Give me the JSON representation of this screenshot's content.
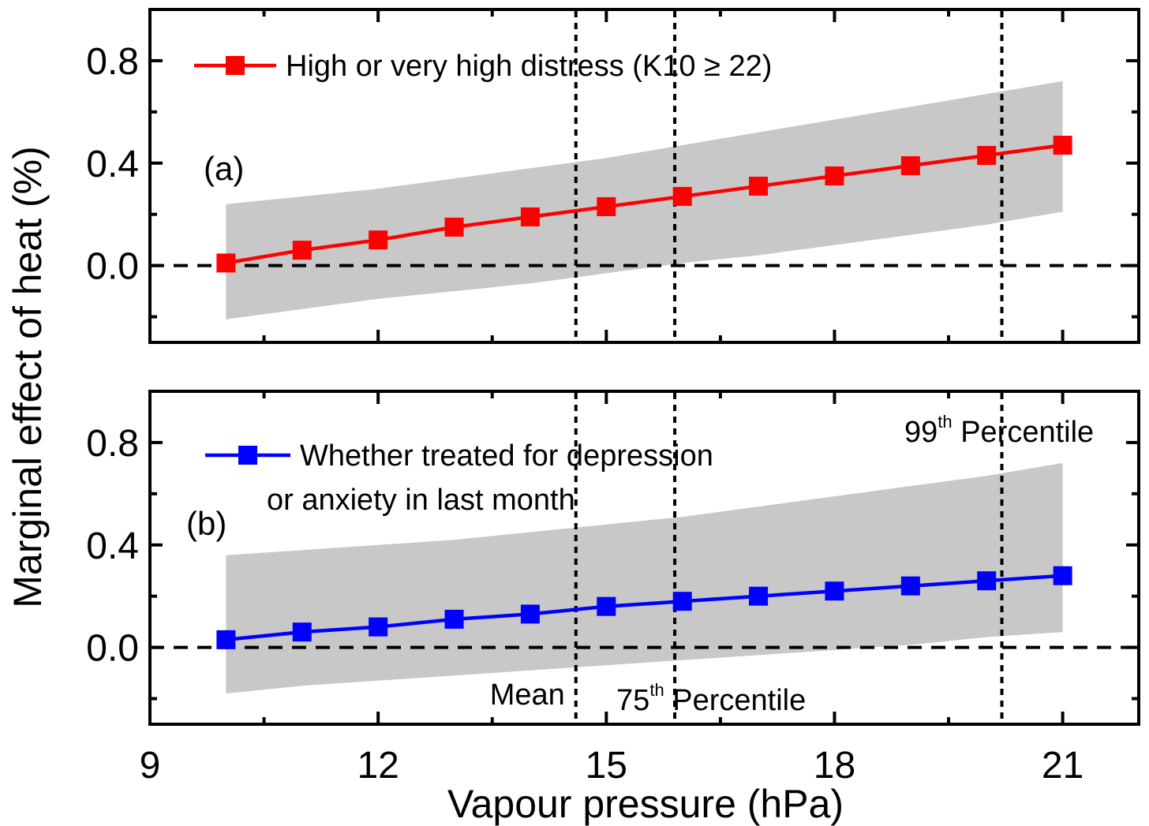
{
  "chart_data": {
    "type": "line",
    "xlabel": "Vapour pressure (hPa)",
    "ylabel": "Marginal effect of heat (%)",
    "xlim": [
      9,
      22
    ],
    "x_ticks": [
      "9",
      "12",
      "15",
      "18",
      "21"
    ],
    "x_tick_values": [
      9,
      12,
      15,
      18,
      21
    ],
    "vlines": [
      {
        "x": 14.6,
        "label": "Mean",
        "sup": "",
        "suffix": ""
      },
      {
        "x": 15.9,
        "label": "75",
        "sup": "th",
        "suffix": " Percentile"
      },
      {
        "x": 20.2,
        "label": "99",
        "sup": "th",
        "suffix": " Percentile"
      }
    ],
    "panels": [
      {
        "label": "(a)",
        "ylim": [
          -0.3,
          1.0
        ],
        "y_ticks": [
          "0.0",
          "0.4",
          "0.8"
        ],
        "y_tick_values": [
          0.0,
          0.4,
          0.8
        ],
        "series": [
          {
            "name": "High or very high distress (K10 ≥ 22)",
            "color": "#ff0000",
            "x": [
              10,
              11,
              12,
              13,
              14,
              15,
              16,
              17,
              18,
              19,
              20,
              21
            ],
            "values": [
              0.01,
              0.06,
              0.1,
              0.15,
              0.19,
              0.23,
              0.27,
              0.31,
              0.35,
              0.39,
              0.43,
              0.47
            ],
            "ci_lower": [
              -0.21,
              -0.17,
              -0.13,
              -0.1,
              -0.07,
              -0.03,
              0.01,
              0.04,
              0.08,
              0.12,
              0.16,
              0.21
            ],
            "ci_upper": [
              0.24,
              0.27,
              0.3,
              0.34,
              0.38,
              0.42,
              0.47,
              0.52,
              0.57,
              0.62,
              0.67,
              0.72
            ]
          }
        ]
      },
      {
        "label": "(b)",
        "ylim": [
          -0.3,
          1.0
        ],
        "y_ticks": [
          "0.0",
          "0.4",
          "0.8"
        ],
        "y_tick_values": [
          0.0,
          0.4,
          0.8
        ],
        "series": [
          {
            "name": "Whether treated for depression or anxiety in last month",
            "name_lines": [
              "Whether treated for depression",
              "or anxiety in last month"
            ],
            "color": "#0000ff",
            "x": [
              10,
              11,
              12,
              13,
              14,
              15,
              16,
              17,
              18,
              19,
              20,
              21
            ],
            "values": [
              0.03,
              0.06,
              0.08,
              0.11,
              0.13,
              0.16,
              0.18,
              0.2,
              0.22,
              0.24,
              0.26,
              0.28
            ],
            "ci_lower": [
              -0.18,
              -0.15,
              -0.13,
              -0.11,
              -0.09,
              -0.07,
              -0.05,
              -0.03,
              -0.01,
              0.01,
              0.04,
              0.06
            ],
            "ci_upper": [
              0.36,
              0.38,
              0.4,
              0.42,
              0.45,
              0.48,
              0.51,
              0.55,
              0.59,
              0.63,
              0.67,
              0.72
            ]
          }
        ]
      }
    ],
    "ci_color": "#c8c8c8",
    "zero_line": true
  }
}
